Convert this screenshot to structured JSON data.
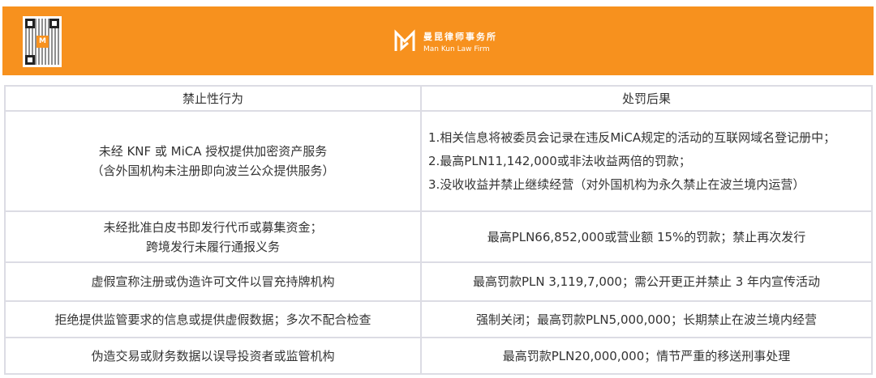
{
  "banner": {
    "brand_cn": "曼昆律师事务所",
    "brand_en": "Man Kun Law Firm",
    "brand_color": "#f7911e",
    "qr_logo": "M"
  },
  "table": {
    "headers": [
      "禁止性行为",
      "处罚后果"
    ],
    "rows": [
      {
        "behavior": [
          "未经 KNF 或 MiCA 授权提供加密资产服务",
          "（含外国机构未注册即向波兰公众提供服务）"
        ],
        "penalty": [
          "1.相关信息将被委员会记录在违反MiCA规定的活动的互联网域名登记册中；",
          "2.最高PLN11,142,000或非法收益两倍的罚款；",
          "3.没收收益并禁止继续经营（对外国机构为永久禁止在波兰境内运营）"
        ]
      },
      {
        "behavior": [
          "未经批准白皮书即发行代币或募集资金；",
          "跨境发行未履行通报义务"
        ],
        "penalty": [
          "最高PLN66,852,000或营业额 15%的罚款；禁止再次发行"
        ]
      },
      {
        "behavior": [
          "虚假宣称注册或伪造许可文件以冒充持牌机构"
        ],
        "penalty": [
          "最高罚款PLN 3,119,7,000；需公开更正并禁止 3 年内宣传活动"
        ]
      },
      {
        "behavior": [
          "拒绝提供监管要求的信息或提供虚假数据；多次不配合检查"
        ],
        "penalty": [
          "强制关闭；最高罚款PLN5,000,000；长期禁止在波兰境内经营"
        ]
      },
      {
        "behavior": [
          "伪造交易或财务数据以误导投资者或监管机构"
        ],
        "penalty": [
          "最高罚款PLN20,000,000；情节严重的移送刑事处理"
        ]
      }
    ]
  }
}
